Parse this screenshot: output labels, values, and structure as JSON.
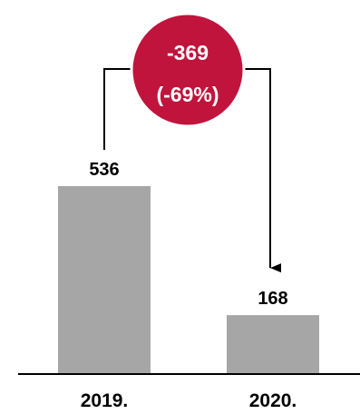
{
  "chart_data": {
    "type": "bar",
    "categories": [
      "2019.",
      "2020."
    ],
    "values": [
      536,
      168
    ],
    "value_labels": [
      "536",
      "168"
    ],
    "ylim": [
      0,
      536
    ],
    "grid": false,
    "legend": "none",
    "bar_color": "#a6a6a6",
    "annotation": {
      "from": "2019.",
      "to": "2020.",
      "change_label": "-369",
      "percent_label": "(-69%)",
      "bubble_color": "#c0143c",
      "bubble_text_color": "#ffffff"
    }
  }
}
